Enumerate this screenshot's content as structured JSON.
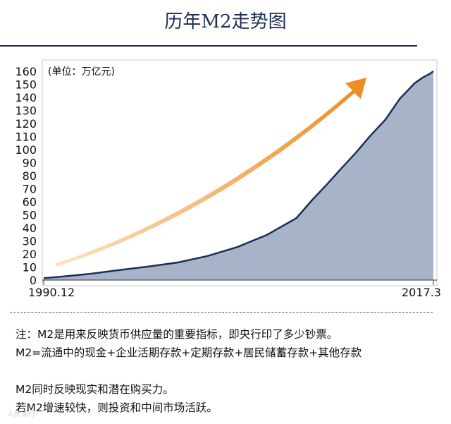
{
  "header": {
    "title": "历年M2走势图"
  },
  "chart_data": {
    "type": "area",
    "title": "历年M2走势图",
    "unit_label": "(单位：万亿元)",
    "ylim": [
      0,
      160
    ],
    "yticks": [
      0,
      10,
      20,
      30,
      40,
      50,
      60,
      70,
      80,
      90,
      100,
      110,
      120,
      130,
      140,
      150,
      160
    ],
    "x_start_label": "1990.12",
    "x_end_label": "2017.3",
    "x_start": 1990.92,
    "x_end": 2017.25,
    "series": [
      {
        "name": "M2",
        "x": [
          1990.92,
          1992,
          1994,
          1996,
          1998,
          2000,
          2002,
          2004,
          2006,
          2008,
          2009,
          2010,
          2011,
          2012,
          2013,
          2014,
          2015,
          2016,
          2016.5,
          2017,
          2017.25
        ],
        "values": [
          1.5,
          2.5,
          4.7,
          7.6,
          10.4,
          13.5,
          18.5,
          25.3,
          34.6,
          47.5,
          60.6,
          72.6,
          85.2,
          97.4,
          110.7,
          122.8,
          139.2,
          151.0,
          155.0,
          158.0,
          160.0
        ]
      }
    ],
    "colors": {
      "area_fill": "#a6b3c9",
      "area_line": "#1b2f56",
      "arrow": "#f09a3c"
    }
  },
  "notes": [
    "注：M2是用来反映货币供应量的重要指标，即央行印了多少钞票。",
    "M2=流通中的现金+企业活期存款+定期存款+居民储蓄存款+其他存款",
    "M2同时反映现实和潜在购买力。",
    "若M2增速较快，则投资和中间市场活跃。"
  ],
  "watermark": "人民银行"
}
